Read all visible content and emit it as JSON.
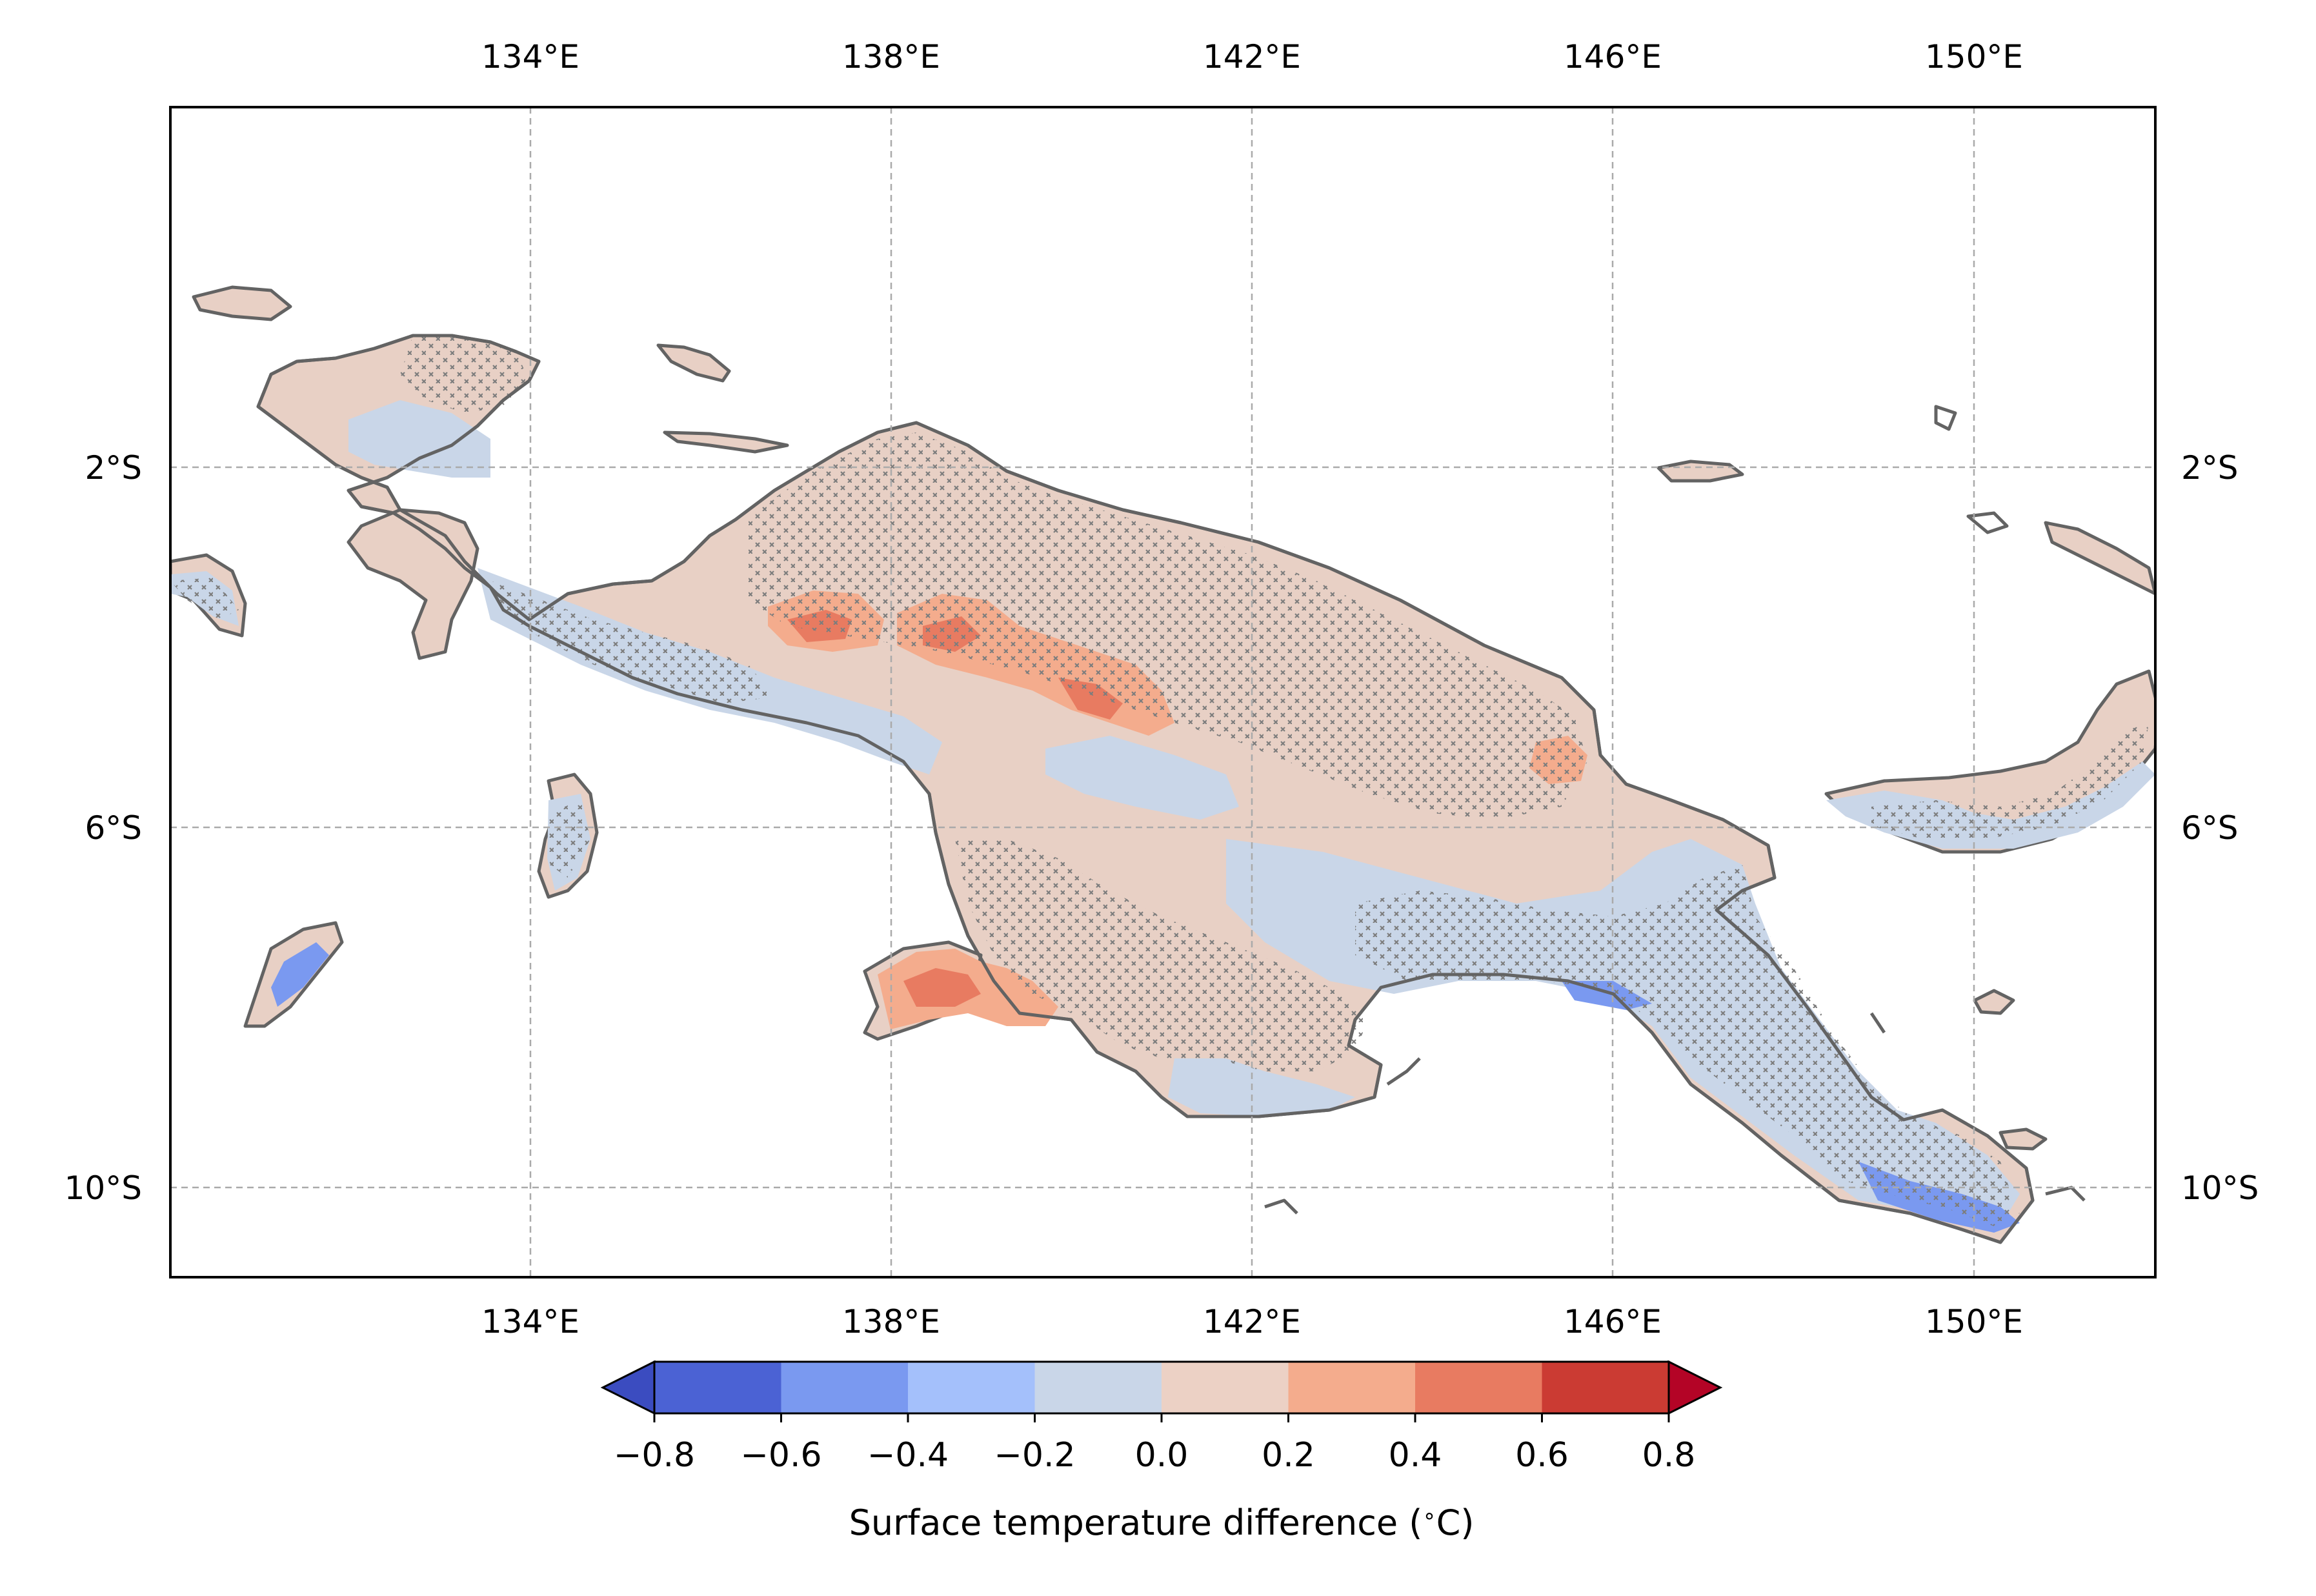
{
  "map": {
    "extent": {
      "lon_min": 128.0,
      "lon_max": 152.0,
      "lat_min": -11.0,
      "lat_max": 2.0
    },
    "gridlines": true,
    "x_ticks": [
      {
        "lon": 134,
        "label": "134°E"
      },
      {
        "lon": 138,
        "label": "138°E"
      },
      {
        "lon": 142,
        "label": "142°E"
      },
      {
        "lon": 146,
        "label": "146°E"
      },
      {
        "lon": 150,
        "label": "150°E"
      }
    ],
    "y_ticks": [
      {
        "lat": -2,
        "label": "2°S"
      },
      {
        "lat": -6,
        "label": "6°S"
      },
      {
        "lat": -10,
        "label": "10°S"
      }
    ],
    "stippling": "x markers indicate significance",
    "colors": {
      "land_base": "#e8d0c5",
      "coast": "#636363",
      "gridline": "#aaaaaa",
      "stipple": "#7d7d7d"
    }
  },
  "colorbar": {
    "ticks": [
      "−0.8",
      "−0.6",
      "−0.4",
      "−0.2",
      "0.0",
      "0.2",
      "0.4",
      "0.6",
      "0.8"
    ],
    "label": "Surface temperature difference (",
    "label_unit": "C)",
    "extend": "both",
    "colors": [
      "#4b62d4",
      "#7a99f0",
      "#a4c0fb",
      "#c9d6e8",
      "#ecd1c5",
      "#f4ac8d",
      "#e87b61",
      "#cb3b33"
    ],
    "under_color": "#3b4cc0",
    "over_color": "#b40426"
  }
}
